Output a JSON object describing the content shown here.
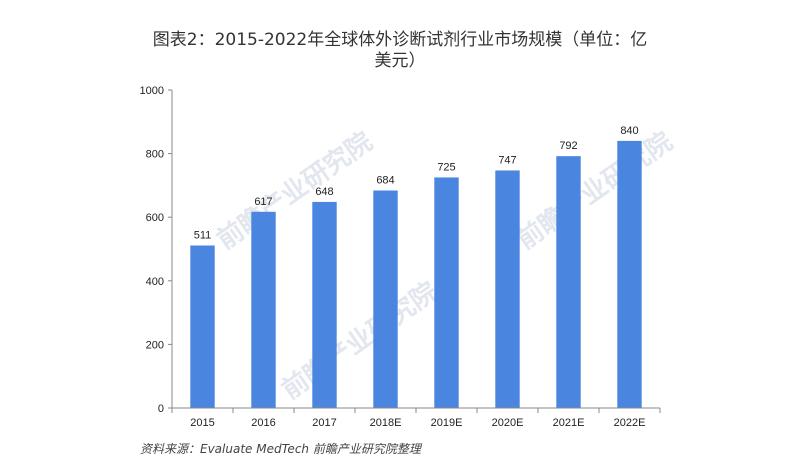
{
  "chart_data": {
    "type": "bar",
    "title": "图表2：2015-2022年全球体外诊断试剂行业市场规模（单位：亿美元）",
    "categories": [
      "2015",
      "2016",
      "2017",
      "2018E",
      "2019E",
      "2020E",
      "2021E",
      "2022E"
    ],
    "values": [
      511,
      617,
      648,
      684,
      725,
      747,
      792,
      840
    ],
    "ylim": [
      0,
      1000
    ],
    "yticks": [
      0,
      200,
      400,
      600,
      800,
      1000
    ],
    "xlabel": "",
    "ylabel": "",
    "grid": false,
    "legend": "none",
    "bar_color": "#4a86e0"
  },
  "source_text": "资料来源：Evaluate MedTech 前瞻产业研究院整理",
  "watermark": "前瞻产业研究院"
}
